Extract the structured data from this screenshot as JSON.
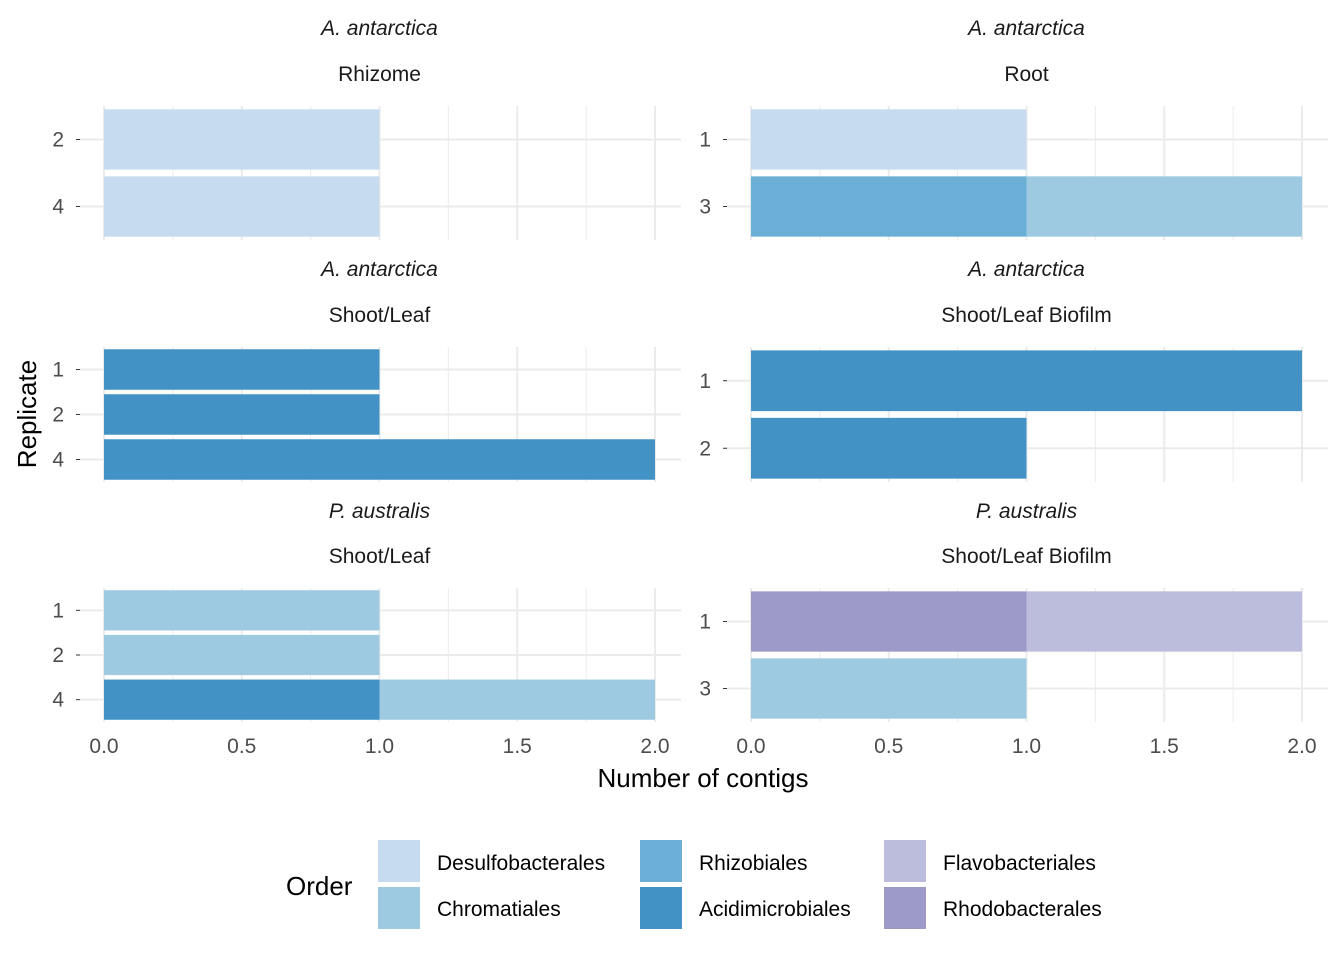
{
  "chart_data": {
    "type": "bar",
    "orientation": "horizontal",
    "stacked": true,
    "xlabel": "Number of contigs",
    "ylabel": "Replicate",
    "xlim": [
      0,
      2
    ],
    "x_ticks": [
      "0.0",
      "0.5",
      "1.0",
      "1.5",
      "2.0"
    ],
    "grid": true,
    "legend": {
      "title": "Order",
      "position": "bottom",
      "entries": [
        {
          "name": "Desulfobacterales",
          "color": "#c6dbef"
        },
        {
          "name": "Chromatiales",
          "color": "#9ecae1"
        },
        {
          "name": "Rhizobiales",
          "color": "#6baed6"
        },
        {
          "name": "Acidimicrobiales",
          "color": "#4292c6"
        },
        {
          "name": "Flavobacteriales",
          "color": "#bcbddc"
        },
        {
          "name": "Rhodobacterales",
          "color": "#9e9ac8"
        }
      ]
    },
    "panels": [
      {
        "species": "A. antarctica",
        "tissue": "Rhizome",
        "replicates": [
          "2",
          "4"
        ],
        "bars": [
          {
            "replicate": "2",
            "segments": [
              {
                "order": "Desulfobacterales",
                "value": 1
              }
            ]
          },
          {
            "replicate": "4",
            "segments": [
              {
                "order": "Desulfobacterales",
                "value": 1
              }
            ]
          }
        ]
      },
      {
        "species": "A. antarctica",
        "tissue": "Root",
        "replicates": [
          "1",
          "3"
        ],
        "bars": [
          {
            "replicate": "1",
            "segments": [
              {
                "order": "Desulfobacterales",
                "value": 1
              }
            ]
          },
          {
            "replicate": "3",
            "segments": [
              {
                "order": "Rhizobiales",
                "value": 1
              },
              {
                "order": "Chromatiales",
                "value": 1
              }
            ]
          }
        ]
      },
      {
        "species": "A. antarctica",
        "tissue": "Shoot/Leaf",
        "replicates": [
          "1",
          "2",
          "4"
        ],
        "bars": [
          {
            "replicate": "1",
            "segments": [
              {
                "order": "Acidimicrobiales",
                "value": 1
              }
            ]
          },
          {
            "replicate": "2",
            "segments": [
              {
                "order": "Acidimicrobiales",
                "value": 1
              }
            ]
          },
          {
            "replicate": "4",
            "segments": [
              {
                "order": "Acidimicrobiales",
                "value": 2
              }
            ]
          }
        ]
      },
      {
        "species": "A. antarctica",
        "tissue": "Shoot/Leaf Biofilm",
        "replicates": [
          "1",
          "2"
        ],
        "bars": [
          {
            "replicate": "1",
            "segments": [
              {
                "order": "Acidimicrobiales",
                "value": 2
              }
            ]
          },
          {
            "replicate": "2",
            "segments": [
              {
                "order": "Acidimicrobiales",
                "value": 1
              }
            ]
          }
        ]
      },
      {
        "species": "P. australis",
        "tissue": "Shoot/Leaf",
        "replicates": [
          "1",
          "2",
          "4"
        ],
        "bars": [
          {
            "replicate": "1",
            "segments": [
              {
                "order": "Chromatiales",
                "value": 1
              }
            ]
          },
          {
            "replicate": "2",
            "segments": [
              {
                "order": "Chromatiales",
                "value": 1
              }
            ]
          },
          {
            "replicate": "4",
            "segments": [
              {
                "order": "Acidimicrobiales",
                "value": 1
              },
              {
                "order": "Chromatiales",
                "value": 1
              }
            ]
          }
        ]
      },
      {
        "species": "P. australis",
        "tissue": "Shoot/Leaf Biofilm",
        "replicates": [
          "1",
          "3"
        ],
        "bars": [
          {
            "replicate": "1",
            "segments": [
              {
                "order": "Rhodobacterales",
                "value": 1
              },
              {
                "order": "Flavobacteriales",
                "value": 1
              }
            ]
          },
          {
            "replicate": "3",
            "segments": [
              {
                "order": "Chromatiales",
                "value": 1
              }
            ]
          }
        ]
      }
    ]
  }
}
